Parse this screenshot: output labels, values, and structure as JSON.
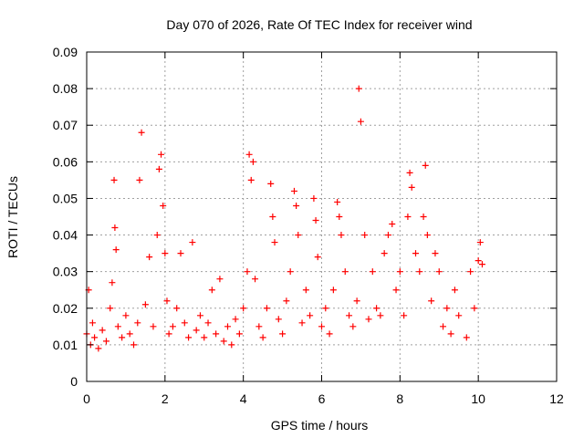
{
  "chart_data": {
    "type": "scatter",
    "title": "Day 070 of 2026, Rate Of TEC Index for receiver wind",
    "xlabel": "GPS time / hours",
    "ylabel": "ROTI / TECUs",
    "xlim": [
      0,
      12
    ],
    "ylim": [
      0,
      0.09
    ],
    "xticks": [
      0,
      2,
      4,
      6,
      8,
      10,
      12
    ],
    "xtick_labels": [
      "0",
      "2",
      "4",
      "6",
      "8",
      "10",
      "12"
    ],
    "yticks": [
      0,
      0.01,
      0.02,
      0.03,
      0.04,
      0.05,
      0.06,
      0.07,
      0.08,
      0.09
    ],
    "ytick_labels": [
      "0",
      "0.01",
      "0.02",
      "0.03",
      "0.04",
      "0.05",
      "0.06",
      "0.07",
      "0.08",
      "0.09"
    ],
    "grid": true,
    "marker": "+",
    "color": "#ff0000",
    "series": [
      {
        "name": "ROTI",
        "x": [
          0.0,
          0.05,
          0.1,
          0.15,
          0.2,
          0.3,
          0.4,
          0.5,
          0.6,
          0.65,
          0.7,
          0.72,
          0.75,
          0.8,
          0.9,
          1.0,
          1.1,
          1.2,
          1.3,
          1.35,
          1.4,
          1.5,
          1.6,
          1.7,
          1.8,
          1.85,
          1.9,
          1.95,
          2.0,
          2.05,
          2.1,
          2.2,
          2.3,
          2.4,
          2.5,
          2.6,
          2.7,
          2.8,
          2.9,
          3.0,
          3.1,
          3.2,
          3.3,
          3.4,
          3.5,
          3.6,
          3.7,
          3.8,
          3.9,
          4.0,
          4.1,
          4.15,
          4.2,
          4.25,
          4.3,
          4.4,
          4.5,
          4.6,
          4.7,
          4.75,
          4.8,
          4.9,
          5.0,
          5.1,
          5.2,
          5.3,
          5.35,
          5.4,
          5.5,
          5.6,
          5.7,
          5.8,
          5.85,
          5.9,
          6.0,
          6.1,
          6.2,
          6.3,
          6.4,
          6.45,
          6.5,
          6.6,
          6.7,
          6.8,
          6.9,
          6.95,
          7.0,
          7.1,
          7.2,
          7.3,
          7.4,
          7.5,
          7.6,
          7.7,
          7.8,
          7.9,
          8.0,
          8.1,
          8.2,
          8.25,
          8.3,
          8.4,
          8.5,
          8.6,
          8.65,
          8.7,
          8.8,
          8.9,
          9.0,
          9.1,
          9.2,
          9.3,
          9.4,
          9.5,
          9.7,
          9.8,
          9.9,
          10.0,
          10.05,
          10.1
        ],
        "y": [
          0.013,
          0.025,
          0.01,
          0.016,
          0.012,
          0.009,
          0.014,
          0.011,
          0.02,
          0.027,
          0.055,
          0.042,
          0.036,
          0.015,
          0.012,
          0.018,
          0.013,
          0.01,
          0.016,
          0.055,
          0.068,
          0.021,
          0.034,
          0.015,
          0.04,
          0.058,
          0.062,
          0.048,
          0.035,
          0.022,
          0.013,
          0.015,
          0.02,
          0.035,
          0.016,
          0.012,
          0.038,
          0.014,
          0.018,
          0.012,
          0.016,
          0.025,
          0.013,
          0.028,
          0.011,
          0.015,
          0.01,
          0.017,
          0.013,
          0.02,
          0.03,
          0.062,
          0.055,
          0.06,
          0.028,
          0.015,
          0.012,
          0.02,
          0.054,
          0.045,
          0.038,
          0.017,
          0.013,
          0.022,
          0.03,
          0.052,
          0.048,
          0.04,
          0.016,
          0.025,
          0.018,
          0.05,
          0.044,
          0.034,
          0.015,
          0.02,
          0.013,
          0.025,
          0.049,
          0.045,
          0.04,
          0.03,
          0.018,
          0.015,
          0.022,
          0.08,
          0.071,
          0.04,
          0.017,
          0.03,
          0.02,
          0.018,
          0.035,
          0.04,
          0.043,
          0.025,
          0.03,
          0.018,
          0.045,
          0.057,
          0.053,
          0.035,
          0.03,
          0.045,
          0.059,
          0.04,
          0.022,
          0.035,
          0.03,
          0.015,
          0.02,
          0.013,
          0.025,
          0.018,
          0.012,
          0.03,
          0.02,
          0.033,
          0.038,
          0.032
        ]
      }
    ]
  }
}
